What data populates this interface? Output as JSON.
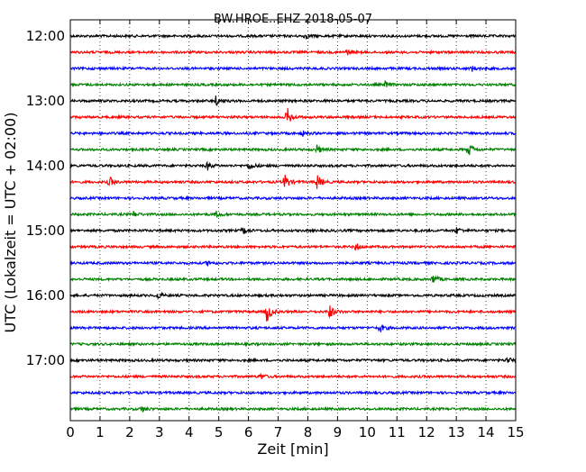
{
  "chart_data": {
    "type": "line",
    "title": "BW.HROE..EHZ 2018-05-07",
    "xlabel": "Zeit  [min]",
    "ylabel": "UTC (Lokalzeit = UTC + 02:00)",
    "xlim": [
      0,
      15
    ],
    "x_ticks": [
      "0",
      "1",
      "2",
      "3",
      "4",
      "5",
      "6",
      "7",
      "8",
      "9",
      "10",
      "11",
      "12",
      "13",
      "14",
      "15"
    ],
    "y_tick_labels": [
      "12:00",
      "13:00",
      "14:00",
      "15:00",
      "16:00",
      "17:00"
    ],
    "y_tick_labels_are_at_traces": [
      0,
      4,
      8,
      12,
      16,
      20
    ],
    "grid": {
      "x": true,
      "y": false,
      "style": "dotted"
    },
    "legend": "none",
    "trace_colors_cycle": [
      "#000000",
      "#ff0000",
      "#0000ff",
      "#008000"
    ],
    "traces": [
      {
        "start": "12:00",
        "color": "#000000",
        "events": [
          {
            "x": 7.9,
            "amp": 0.3
          }
        ]
      },
      {
        "start": "12:15",
        "color": "#ff0000",
        "events": [
          {
            "x": 9.3,
            "amp": 0.3
          }
        ]
      },
      {
        "start": "12:30",
        "color": "#0000ff",
        "events": [
          {
            "x": 13.5,
            "amp": 0.3
          }
        ]
      },
      {
        "start": "12:45",
        "color": "#008000",
        "events": [
          {
            "x": 10.6,
            "amp": 0.35
          }
        ]
      },
      {
        "start": "13:00",
        "color": "#000000",
        "events": [
          {
            "x": 4.9,
            "amp": 0.45
          }
        ]
      },
      {
        "start": "13:15",
        "color": "#ff0000",
        "events": [
          {
            "x": 7.3,
            "amp": 1.0
          }
        ]
      },
      {
        "start": "13:30",
        "color": "#0000ff",
        "events": [
          {
            "x": 7.8,
            "amp": 0.3
          }
        ]
      },
      {
        "start": "13:45",
        "color": "#008000",
        "events": [
          {
            "x": 8.3,
            "amp": 0.45
          },
          {
            "x": 13.4,
            "amp": 0.8
          }
        ]
      },
      {
        "start": "14:00",
        "color": "#000000",
        "events": [
          {
            "x": 4.6,
            "amp": 0.45
          },
          {
            "x": 6.0,
            "amp": 0.5
          }
        ]
      },
      {
        "start": "14:15",
        "color": "#ff0000",
        "events": [
          {
            "x": 1.3,
            "amp": 0.6
          },
          {
            "x": 7.2,
            "amp": 1.0
          },
          {
            "x": 8.3,
            "amp": 0.8
          }
        ]
      },
      {
        "start": "14:30",
        "color": "#0000ff",
        "events": []
      },
      {
        "start": "14:45",
        "color": "#008000",
        "events": [
          {
            "x": 2.1,
            "amp": 0.35
          },
          {
            "x": 4.9,
            "amp": 0.35
          }
        ]
      },
      {
        "start": "15:00",
        "color": "#000000",
        "events": [
          {
            "x": 5.8,
            "amp": 0.35
          },
          {
            "x": 13.0,
            "amp": 0.35
          }
        ]
      },
      {
        "start": "15:15",
        "color": "#ff0000",
        "events": [
          {
            "x": 9.6,
            "amp": 0.4
          }
        ]
      },
      {
        "start": "15:30",
        "color": "#0000ff",
        "events": [
          {
            "x": 4.6,
            "amp": 0.3
          }
        ]
      },
      {
        "start": "15:45",
        "color": "#008000",
        "events": [
          {
            "x": 12.2,
            "amp": 0.55
          }
        ]
      },
      {
        "start": "16:00",
        "color": "#000000",
        "events": [
          {
            "x": 2.9,
            "amp": 0.45
          }
        ]
      },
      {
        "start": "16:15",
        "color": "#ff0000",
        "events": [
          {
            "x": 6.6,
            "amp": 1.3
          },
          {
            "x": 8.7,
            "amp": 0.9
          }
        ]
      },
      {
        "start": "16:30",
        "color": "#0000ff",
        "events": [
          {
            "x": 10.4,
            "amp": 0.55
          }
        ]
      },
      {
        "start": "16:45",
        "color": "#008000",
        "events": []
      },
      {
        "start": "17:00",
        "color": "#000000",
        "events": [
          {
            "x": 14.7,
            "amp": 0.35
          }
        ]
      },
      {
        "start": "17:15",
        "color": "#ff0000",
        "events": [
          {
            "x": 6.4,
            "amp": 0.3
          }
        ]
      },
      {
        "start": "17:30",
        "color": "#0000ff",
        "events": []
      },
      {
        "start": "17:45",
        "color": "#008000",
        "events": [
          {
            "x": 2.4,
            "amp": 0.3
          }
        ]
      }
    ]
  }
}
